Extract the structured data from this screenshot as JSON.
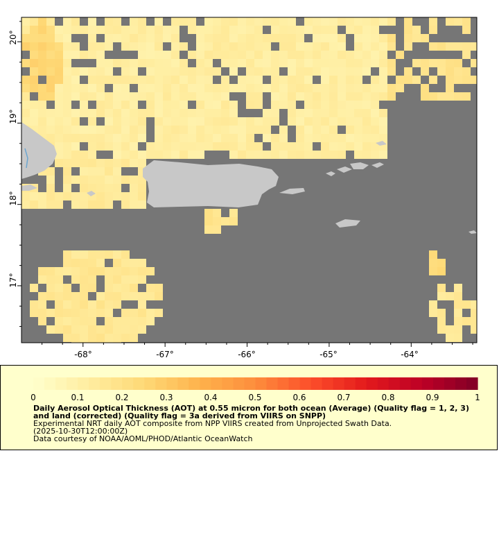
{
  "map": {
    "lat_ticks": [
      "20°",
      "19°",
      "18°",
      "17°"
    ],
    "lon_ticks": [
      "-68°",
      "-67°",
      "-66°",
      "-65°",
      "-64°"
    ],
    "extent": {
      "lon_min": -68.75,
      "lon_max": -63.2,
      "lat_min": 16.3,
      "lat_max": 20.3
    },
    "colors": {
      "missing": "#767676",
      "land": "#c8c8c8",
      "water": "#6ba6d0"
    },
    "aot_field_description_values": {
      "north_sector_aot": 0.15,
      "coastal_pocket_aot": 0.25
    }
  },
  "legend": {
    "scale": {
      "min": 0,
      "max": 1,
      "steps": 40
    },
    "tick_labels": [
      "0",
      "0.1",
      "0.2",
      "0.3",
      "0.4",
      "0.5",
      "0.6",
      "0.7",
      "0.8",
      "0.9",
      "1"
    ],
    "colors": [
      "#ffffcc",
      "#ffeda0",
      "#fed976",
      "#feb24c",
      "#fd8d3c",
      "#fc4e2a",
      "#e31a1c",
      "#bd0026",
      "#800026"
    ],
    "title": "Daily Aerosol Optical Thickness (AOT) at 0.55 micron for both ocean (Average) (Quality flag = 1, 2, 3) and land (corrected) (Quality flag = 3a derived from VIIRS on SNPP)",
    "line1": "Experimental NRT daily AOT composite from NPP VIIRS created from Unprojected Swath Data.",
    "line2": "(2025-10-30T12:00:00Z)",
    "line3": "Data courtesy of NOAA/AOML/PHOD/Atlantic OceanWatch"
  }
}
